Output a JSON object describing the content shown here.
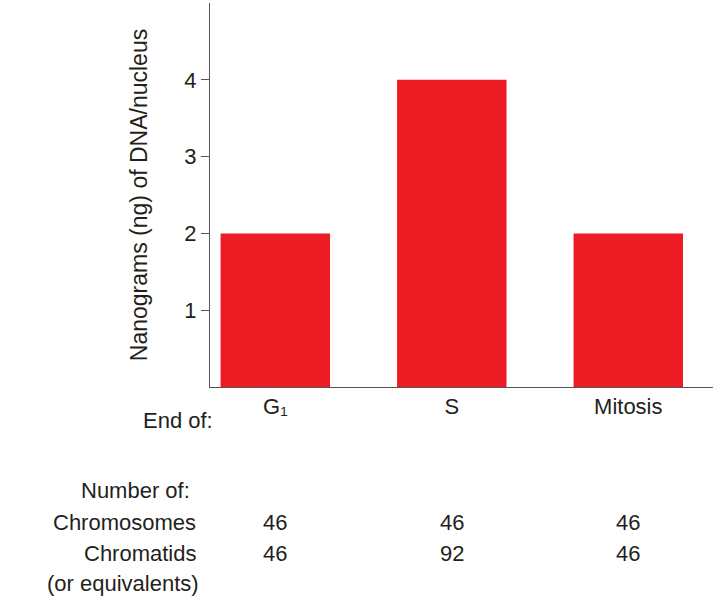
{
  "chart_data": {
    "type": "bar",
    "y_label": "Nanograms (ng) of DNA/nucleus",
    "category_label": "End of:",
    "categories": [
      "G₁",
      "S",
      "Mitosis"
    ],
    "values": [
      2,
      4,
      2
    ],
    "color": "#ed1c24",
    "ylim": [
      0,
      5
    ],
    "yticks": [
      1,
      2,
      3,
      4
    ],
    "grid": false,
    "table": {
      "title": "Number of:",
      "rows": [
        {
          "label": "Chromosomes",
          "values": [
            46,
            46,
            46
          ]
        },
        {
          "label": "Chromatids",
          "values": [
            46,
            92,
            46
          ]
        }
      ],
      "note": "(or equivalents)"
    }
  }
}
